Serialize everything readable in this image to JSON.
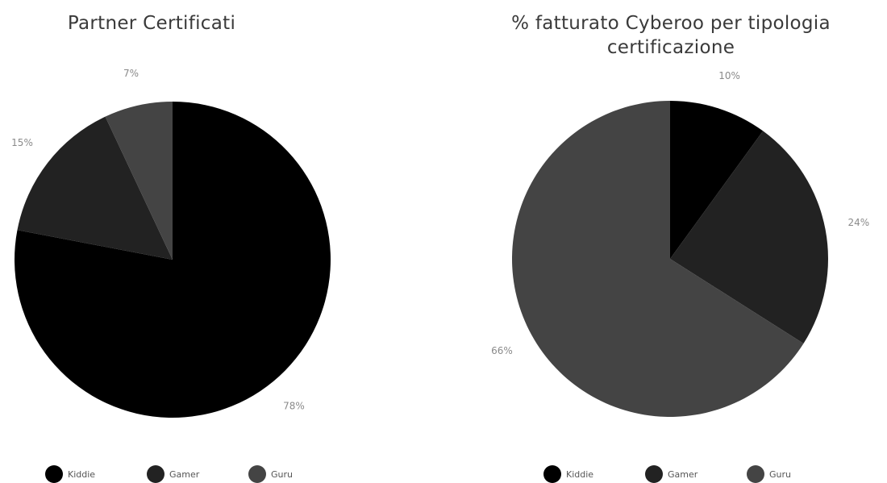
{
  "colors": {
    "kiddie": "#000000",
    "gamer": "#222222",
    "guru": "#444444",
    "title_text": "#3a3a3a",
    "label_text": "#8a8a8a"
  },
  "chart_data": [
    {
      "type": "pie",
      "title": "Partner Certificati",
      "legend_position": "bottom",
      "categories": [
        "Kiddie",
        "Gamer",
        "Guru"
      ],
      "values": [
        78,
        15,
        7
      ],
      "labels": [
        "78%",
        "15%",
        "7%"
      ]
    },
    {
      "type": "pie",
      "title": "% fatturato Cyberoo per tipologia\ncertificazione",
      "legend_position": "bottom",
      "categories": [
        "Kiddie",
        "Gamer",
        "Guru"
      ],
      "values": [
        10,
        24,
        66
      ],
      "labels": [
        "10%",
        "24%",
        "66%"
      ]
    }
  ]
}
